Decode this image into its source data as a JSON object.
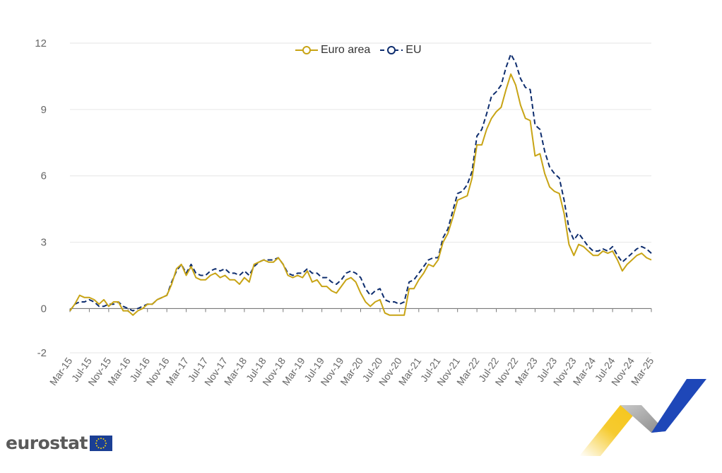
{
  "chart_data": {
    "type": "line",
    "title": "",
    "xlabel": "",
    "ylabel": "",
    "ylim": [
      -2,
      12
    ],
    "yticks": [
      "12",
      "9",
      "6",
      "3",
      "0",
      "-2"
    ],
    "ytick_values": [
      12,
      9,
      6,
      3,
      0,
      -2
    ],
    "grid": "horizontal",
    "legend_position": "top-center",
    "x_tick_labels": [
      "Mar-15",
      "Jul-15",
      "Nov-15",
      "Mar-16",
      "Jul-16",
      "Nov-16",
      "Mar-17",
      "Jul-17",
      "Nov-17",
      "Mar-18",
      "Jul-18",
      "Nov-18",
      "Mar-19",
      "Jul-19",
      "Nov-19",
      "Mar-20",
      "Jul-20",
      "Nov-20",
      "Mar-21",
      "Jul-21",
      "Nov-21",
      "Mar-22",
      "Jul-22",
      "Nov-22",
      "Mar-23",
      "Jul-23",
      "Nov-23",
      "Mar-24",
      "Jul-24",
      "Nov-24",
      "Mar-25"
    ],
    "x_start": "Mar-15",
    "x_end": "Mar-25",
    "frequency": "monthly",
    "series": [
      {
        "name": "Euro area",
        "color": "#c8a415",
        "style": "solid",
        "values": [
          -0.1,
          0.2,
          0.6,
          0.5,
          0.5,
          0.4,
          0.2,
          0.4,
          0.1,
          0.3,
          0.3,
          -0.1,
          -0.1,
          -0.3,
          -0.1,
          0.0,
          0.2,
          0.2,
          0.4,
          0.5,
          0.6,
          1.1,
          1.8,
          2.0,
          1.5,
          1.9,
          1.4,
          1.3,
          1.3,
          1.5,
          1.6,
          1.4,
          1.5,
          1.3,
          1.3,
          1.1,
          1.4,
          1.2,
          2.0,
          2.1,
          2.2,
          2.1,
          2.1,
          2.3,
          2.0,
          1.5,
          1.4,
          1.5,
          1.4,
          1.7,
          1.2,
          1.3,
          1.0,
          1.0,
          0.8,
          0.7,
          1.0,
          1.3,
          1.4,
          1.2,
          0.7,
          0.3,
          0.1,
          0.3,
          0.4,
          -0.2,
          -0.3,
          -0.3,
          -0.3,
          -0.3,
          0.9,
          0.9,
          1.3,
          1.6,
          2.0,
          1.9,
          2.2,
          3.0,
          3.4,
          4.1,
          4.9,
          5.0,
          5.1,
          5.9,
          7.4,
          7.4,
          8.1,
          8.6,
          8.9,
          9.1,
          9.9,
          10.6,
          10.1,
          9.2,
          8.6,
          8.5,
          6.9,
          7.0,
          6.1,
          5.5,
          5.3,
          5.2,
          4.3,
          2.9,
          2.4,
          2.9,
          2.8,
          2.6,
          2.4,
          2.4,
          2.6,
          2.5,
          2.6,
          2.2,
          1.7,
          2.0,
          2.2,
          2.4,
          2.5,
          2.3,
          2.2
        ]
      },
      {
        "name": "EU",
        "color": "#0e2d6e",
        "style": "dashed",
        "values": [
          -0.1,
          0.2,
          0.3,
          0.3,
          0.4,
          0.3,
          0.1,
          0.1,
          0.2,
          0.2,
          0.3,
          0.1,
          0.0,
          -0.1,
          0.0,
          0.1,
          0.2,
          0.2,
          0.4,
          0.5,
          0.6,
          1.2,
          1.7,
          2.0,
          1.6,
          2.0,
          1.6,
          1.5,
          1.5,
          1.7,
          1.8,
          1.7,
          1.8,
          1.6,
          1.6,
          1.5,
          1.7,
          1.5,
          1.9,
          2.1,
          2.2,
          2.2,
          2.2,
          2.3,
          2.0,
          1.6,
          1.5,
          1.6,
          1.6,
          1.8,
          1.6,
          1.6,
          1.4,
          1.4,
          1.2,
          1.1,
          1.3,
          1.6,
          1.7,
          1.6,
          1.4,
          0.9,
          0.6,
          0.8,
          0.9,
          0.4,
          0.3,
          0.3,
          0.2,
          0.3,
          1.2,
          1.3,
          1.6,
          1.9,
          2.2,
          2.3,
          2.3,
          3.2,
          3.6,
          4.4,
          5.2,
          5.3,
          5.6,
          6.2,
          7.8,
          8.1,
          8.8,
          9.6,
          9.8,
          10.1,
          10.9,
          11.5,
          11.1,
          10.4,
          10.0,
          9.9,
          8.3,
          8.1,
          7.1,
          6.4,
          6.1,
          5.9,
          4.9,
          3.6,
          3.1,
          3.4,
          3.1,
          2.8,
          2.6,
          2.6,
          2.7,
          2.6,
          2.8,
          2.4,
          2.1,
          2.3,
          2.5,
          2.7,
          2.8,
          2.7,
          2.5
        ]
      }
    ]
  },
  "legend": {
    "items": [
      {
        "label": "Euro area",
        "color": "#c8a415"
      },
      {
        "label": "EU",
        "color": "#0e2d6e"
      }
    ]
  },
  "brand": {
    "name": "eurostat",
    "flag_color": "#1b3f94",
    "star_color": "#f5d20a"
  },
  "decoration": {
    "colors": [
      "#f5c518",
      "#9a9a9a",
      "#1e47b8"
    ]
  }
}
